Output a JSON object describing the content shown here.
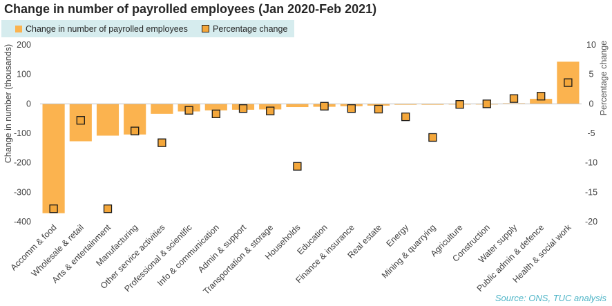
{
  "chart_data": {
    "type": "bar",
    "title": "Change in number of payrolled employees (Jan 2020-Feb 2021)",
    "ylabel": "Change in number (thousands)",
    "y2label": "Percentage change",
    "ylim": [
      -400,
      200
    ],
    "y2lim": [
      -20,
      10
    ],
    "yticks": [
      200,
      100,
      0,
      -100,
      -200,
      -300,
      -400
    ],
    "y2ticks": [
      10,
      5,
      0,
      -5,
      -10,
      -15,
      -20
    ],
    "legend_position": "top-left",
    "grid": false,
    "categories": [
      "Accomm & food",
      "Wholesale & retail",
      "Arts & entertainment",
      "Manufacturing",
      "Other service activities",
      "Professional & scientific",
      "Info & communication",
      "Admin & support",
      "Transportation & storage",
      "Households",
      "Education",
      "Finance & insurance",
      "Real estate",
      "Energy",
      "Mining & quarrying",
      "Agriculture",
      "Construction",
      "Water supply",
      "Public admin & defence",
      "Health & social work"
    ],
    "series": [
      {
        "name": "Change in number of payrolled employees",
        "axis": "left",
        "kind": "bar",
        "values": [
          -371,
          -127,
          -108,
          -104,
          -34,
          -26,
          -22,
          -20,
          -19,
          -11,
          -10,
          -8,
          -6,
          -3,
          -3,
          -1,
          -1,
          2,
          17,
          143
        ]
      },
      {
        "name": "Percentage change",
        "axis": "right",
        "kind": "marker",
        "values": [
          -17.8,
          -2.8,
          -17.8,
          -4.6,
          -6.6,
          -1.1,
          -1.7,
          -0.8,
          -1.2,
          -10.6,
          -0.4,
          -0.8,
          -0.9,
          -2.2,
          -5.7,
          -0.1,
          0.0,
          0.9,
          1.3,
          3.6
        ]
      }
    ],
    "colors": {
      "bar": "#fbb34f",
      "marker_fill": "#f4a73b",
      "marker_edge": "#1a1a1a",
      "legend_bg": "#d6ecee",
      "source_text": "#4fb5c7"
    }
  },
  "source": "Source: ONS, TUC analysis"
}
